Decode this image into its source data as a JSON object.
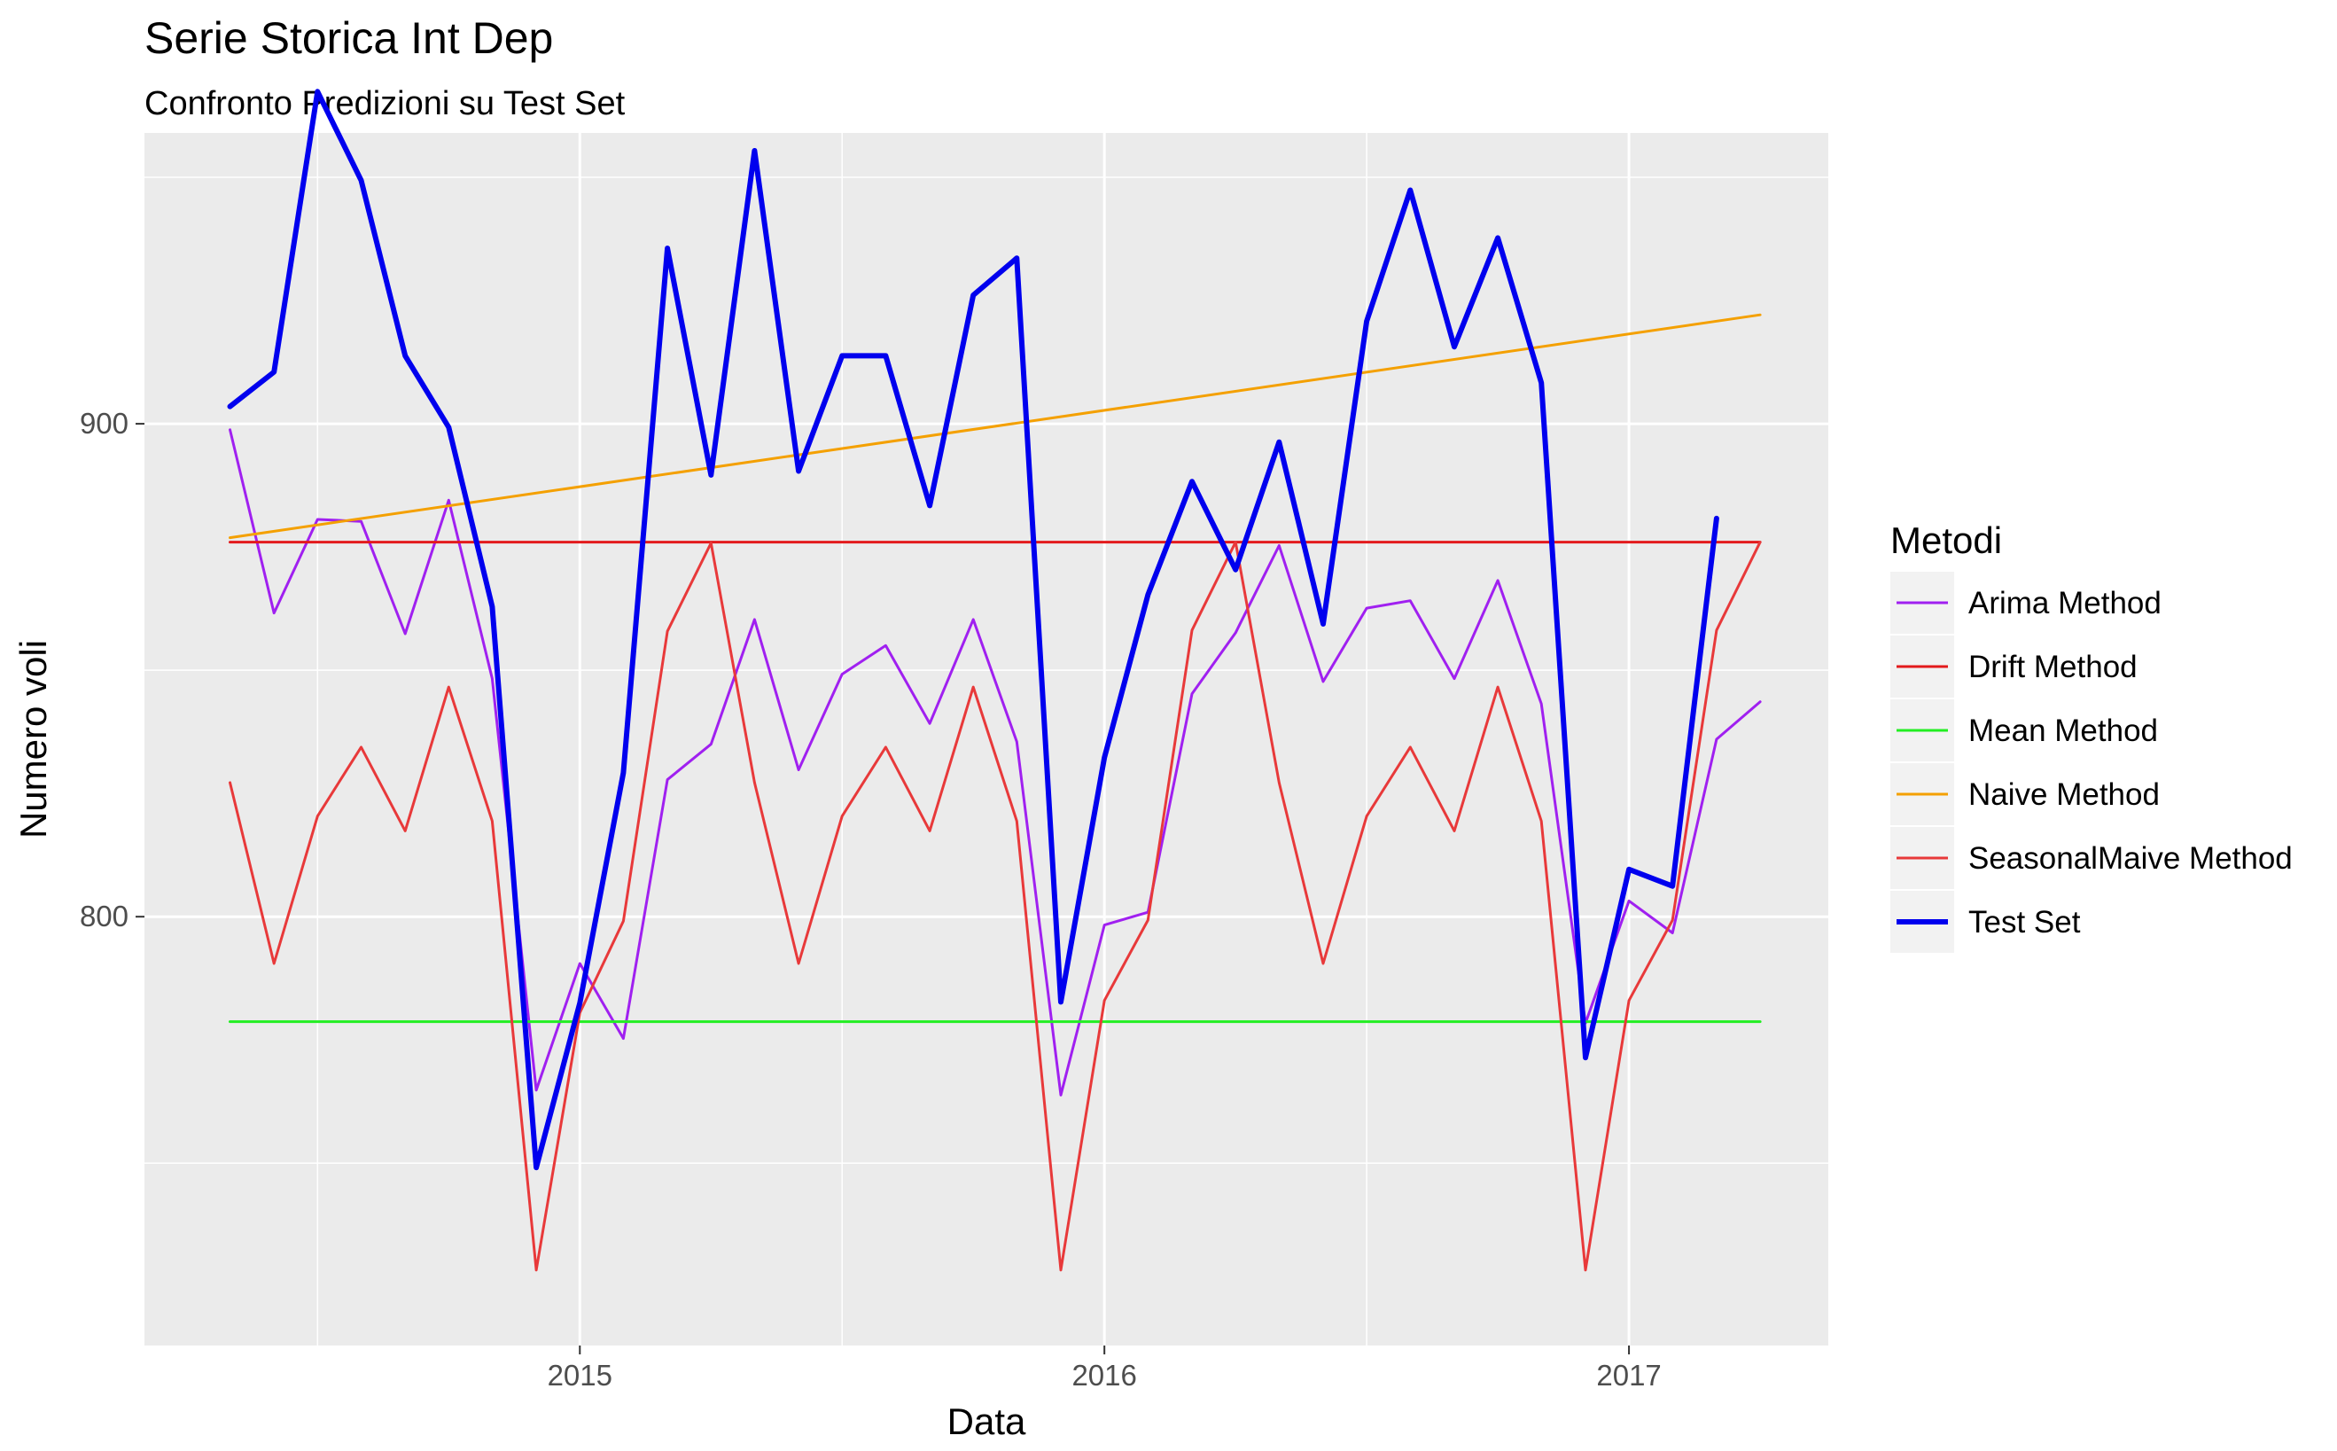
{
  "title": "Serie Storica Int Dep",
  "subtitle": "Confronto Predizioni su Test Set",
  "chart_data": {
    "type": "line",
    "title": "Serie Storica Int Dep",
    "subtitle": "Confronto Predizioni su Test Set",
    "xlabel": "Data",
    "ylabel": "Numero voli",
    "xlim": [
      2014.17,
      2017.38
    ],
    "ylim": [
      713,
      959
    ],
    "x_ticks": [
      2015,
      2016,
      2017
    ],
    "x_tick_labels": [
      "2015",
      "2016",
      "2017"
    ],
    "y_ticks": [
      800,
      900
    ],
    "y_tick_labels": [
      "800",
      "900"
    ],
    "grid": true,
    "background": "#ebebeb",
    "legend": {
      "title": "Metodi",
      "position": "right"
    },
    "series": [
      {
        "name": "Arima Method",
        "color": "#a020f0",
        "width": 3,
        "x": [
          2014.333,
          2014.417,
          2014.5,
          2014.583,
          2014.667,
          2014.75,
          2014.833,
          2014.917,
          2015.0,
          2015.083,
          2015.167,
          2015.25,
          2015.333,
          2015.417,
          2015.5,
          2015.583,
          2015.667,
          2015.75,
          2015.833,
          2015.917,
          2016.0,
          2016.083,
          2016.167,
          2016.25,
          2016.333,
          2016.417,
          2016.5,
          2016.583,
          2016.667,
          2016.75,
          2016.833,
          2016.917,
          2017.0,
          2017.083,
          2017.167,
          2017.25
        ],
        "y": [
          898.8,
          861.6,
          880.6,
          880.2,
          857.4,
          884.5,
          848.3,
          764.8,
          790.5,
          775.3,
          827.8,
          835.0,
          860.3,
          829.8,
          849.2,
          855.0,
          839.2,
          860.3,
          835.5,
          763.8,
          798.3,
          800.9,
          845.2,
          857.6,
          875.3,
          847.7,
          862.6,
          864.1,
          848.3,
          868.2,
          843.2,
          778.4,
          803.2,
          796.7,
          836.0,
          843.6
        ]
      },
      {
        "name": "Drift Method",
        "color": "#e31a1c",
        "width": 3,
        "x": [
          2014.333,
          2017.25
        ],
        "y": [
          876,
          876
        ]
      },
      {
        "name": "Mean Method",
        "color": "#22ee22",
        "width": 3,
        "x": [
          2014.333,
          2017.25
        ],
        "y": [
          778.7,
          778.7
        ]
      },
      {
        "name": "Naive Method",
        "color": "#f4a000",
        "width": 3,
        "x": [
          2014.333,
          2017.25
        ],
        "y": [
          876.9,
          922.1
        ]
      },
      {
        "name": "SeasonalMaive Method",
        "color": "#e8393a",
        "width": 3,
        "x": [
          2014.333,
          2014.417,
          2014.5,
          2014.583,
          2014.667,
          2014.75,
          2014.833,
          2014.917,
          2015.0,
          2015.083,
          2015.167,
          2015.25,
          2015.333,
          2015.417,
          2015.5,
          2015.583,
          2015.667,
          2015.75,
          2015.833,
          2015.917,
          2016.0,
          2016.083,
          2016.167,
          2016.25,
          2016.333,
          2016.417,
          2016.5,
          2016.583,
          2016.667,
          2016.75,
          2016.833,
          2016.917,
          2017.0,
          2017.083,
          2017.167,
          2017.25
        ],
        "y": [
          827.2,
          790.5,
          820.4,
          834.4,
          817.4,
          846.6,
          819.4,
          728.3,
          780.5,
          799.1,
          857.9,
          875.8,
          827.2,
          790.5,
          820.4,
          834.4,
          817.4,
          846.6,
          819.4,
          728.3,
          783.0,
          799.3,
          858.1,
          876.0,
          827.2,
          790.5,
          820.4,
          834.4,
          817.4,
          846.6,
          819.4,
          728.3,
          783.0,
          799.3,
          858.1,
          876.0
        ]
      },
      {
        "name": "Test Set",
        "color": "#0000ee",
        "width": 6,
        "x": [
          2014.333,
          2014.417,
          2014.5,
          2014.583,
          2014.667,
          2014.75,
          2014.833,
          2014.917,
          2015.0,
          2015.083,
          2015.167,
          2015.25,
          2015.333,
          2015.417,
          2015.5,
          2015.583,
          2015.667,
          2015.75,
          2015.833,
          2015.917,
          2016.0,
          2016.083,
          2016.167,
          2016.25,
          2016.333,
          2016.417,
          2016.5,
          2016.583,
          2016.667,
          2016.75,
          2016.833,
          2016.917,
          2017.0,
          2017.083,
          2017.167
        ],
        "y": [
          903.5,
          910.5,
          967.4,
          949.4,
          913.8,
          899.3,
          862.9,
          749.1,
          782.5,
          829.2,
          935.6,
          889.6,
          955.4,
          890.4,
          913.8,
          913.8,
          883.4,
          926.1,
          933.6,
          782.7,
          832.3,
          865.3,
          888.3,
          870.4,
          896.3,
          859.4,
          920.8,
          947.4,
          915.6,
          937.7,
          908.3,
          771.4,
          809.6,
          806.2,
          880.8
        ]
      }
    ]
  }
}
